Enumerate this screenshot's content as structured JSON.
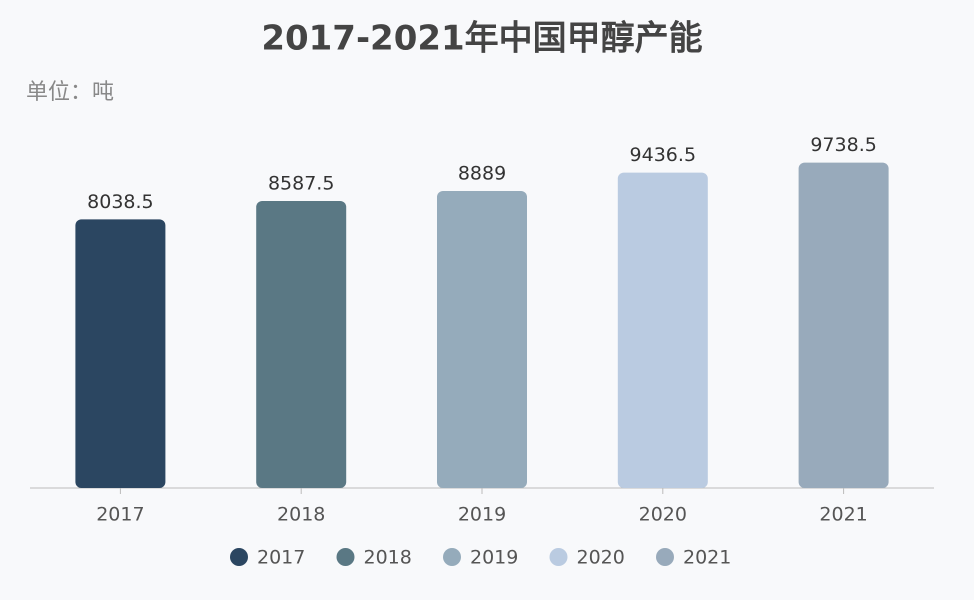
{
  "chart_data": {
    "type": "bar",
    "title": "2017-2021年中国甲醇产能",
    "subtitle": "单位：吨",
    "categories": [
      "2017",
      "2018",
      "2019",
      "2020",
      "2021"
    ],
    "values": [
      8038.5,
      8587.5,
      8889,
      9436.5,
      9738.5
    ],
    "colors": [
      "#2b4661",
      "#5a7884",
      "#95abbb",
      "#bacbe1",
      "#98aabb"
    ],
    "ylim": [
      0,
      12000
    ],
    "grid": false
  }
}
